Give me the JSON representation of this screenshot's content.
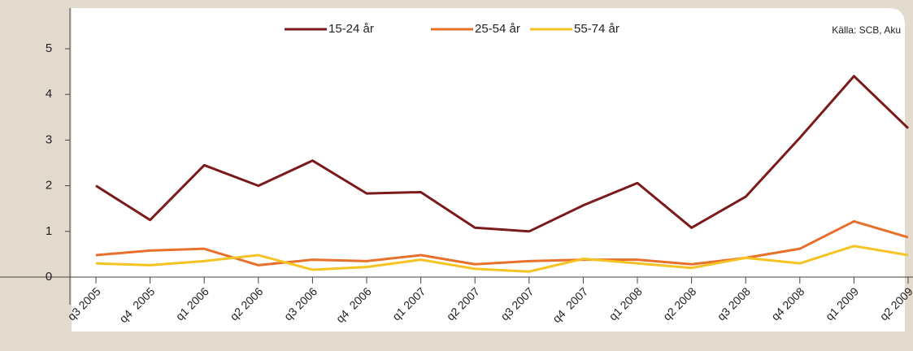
{
  "chart_data": {
    "type": "line",
    "source": "Källa: SCB, Aku",
    "categories": [
      "q3 2005",
      "q4  2005",
      "q1 2006",
      "q2 2006",
      "q3 2006",
      "q4  2006",
      "q1 2007",
      "q2 2007",
      "q3 2007",
      "q4  2007",
      "q1 2008",
      "q2 2008",
      "q3 2008",
      "q4 2008",
      "q1 2009",
      "q2 2009"
    ],
    "series": [
      {
        "name": "15-24 år",
        "color": "#7b1a1a",
        "values": [
          2.0,
          1.25,
          2.45,
          2.0,
          2.55,
          1.83,
          1.86,
          1.08,
          1.0,
          1.57,
          2.06,
          1.08,
          1.76,
          3.05,
          4.4,
          3.26
        ]
      },
      {
        "name": "25-54 år",
        "color": "#e8702a",
        "values": [
          0.48,
          0.58,
          0.62,
          0.26,
          0.38,
          0.35,
          0.48,
          0.28,
          0.35,
          0.38,
          0.38,
          0.28,
          0.42,
          0.62,
          1.22,
          0.87
        ]
      },
      {
        "name": "55-74 år",
        "color": "#f5c323",
        "values": [
          0.3,
          0.26,
          0.35,
          0.48,
          0.16,
          0.22,
          0.38,
          0.18,
          0.12,
          0.4,
          0.3,
          0.2,
          0.42,
          0.3,
          0.68,
          0.48
        ]
      }
    ],
    "ylim": [
      0,
      5
    ],
    "yticks": [
      0,
      1,
      2,
      3,
      4,
      5
    ],
    "legend": "top"
  }
}
